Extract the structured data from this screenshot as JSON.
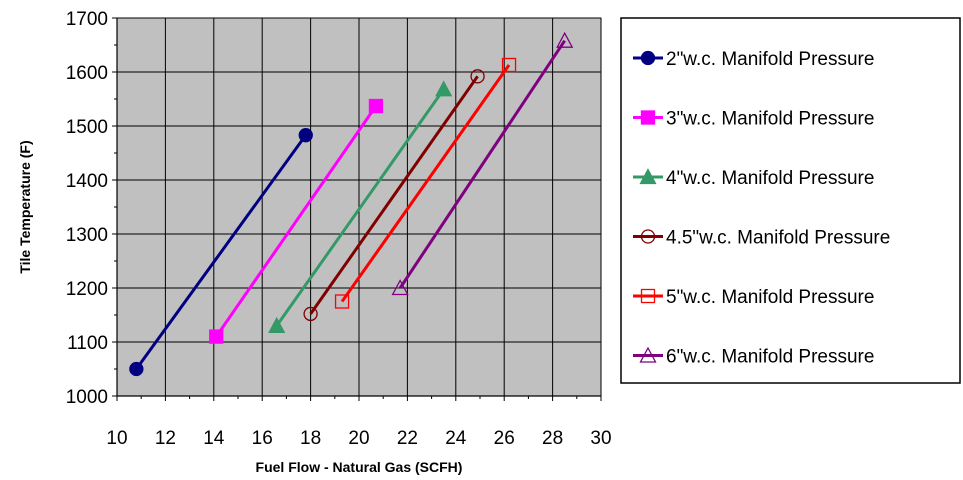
{
  "chart_data": {
    "type": "line",
    "title": "",
    "xlabel": "Fuel Flow - Natural Gas (SCFH)",
    "ylabel": "Tile Temperature (F)",
    "xlim": [
      10,
      30
    ],
    "ylim": [
      1000,
      1700
    ],
    "x_ticks": [
      10,
      12,
      14,
      16,
      18,
      20,
      22,
      24,
      26,
      28,
      30
    ],
    "y_ticks": [
      1000,
      1100,
      1200,
      1300,
      1400,
      1500,
      1600,
      1700
    ],
    "grid": true,
    "plot_background": "#c0c0c0",
    "legend_position": "right",
    "series": [
      {
        "name": "2\"w.c. Manifold Pressure",
        "color": "#000080",
        "marker": "circle-filled",
        "points": [
          [
            10.8,
            1050
          ],
          [
            17.8,
            1483
          ]
        ]
      },
      {
        "name": "3\"w.c. Manifold Pressure",
        "color": "#ff00ff",
        "marker": "square-filled",
        "points": [
          [
            14.1,
            1110
          ],
          [
            20.7,
            1537
          ]
        ]
      },
      {
        "name": "4\"w.c. Manifold Pressure",
        "color": "#339966",
        "marker": "triangle-filled",
        "points": [
          [
            16.6,
            1130
          ],
          [
            23.5,
            1568
          ]
        ]
      },
      {
        "name": "4.5\"w.c. Manifold Pressure",
        "color": "#800000",
        "marker": "circle-open",
        "points": [
          [
            18.0,
            1152
          ],
          [
            24.9,
            1592
          ]
        ]
      },
      {
        "name": "5\"w.c. Manifold Pressure",
        "color": "#ff0000",
        "marker": "square-open",
        "points": [
          [
            19.3,
            1175
          ],
          [
            26.2,
            1613
          ]
        ]
      },
      {
        "name": "6\"w.c. Manifold Pressure",
        "color": "#800080",
        "marker": "triangle-open",
        "points": [
          [
            21.7,
            1200
          ],
          [
            28.5,
            1658
          ]
        ]
      }
    ]
  }
}
